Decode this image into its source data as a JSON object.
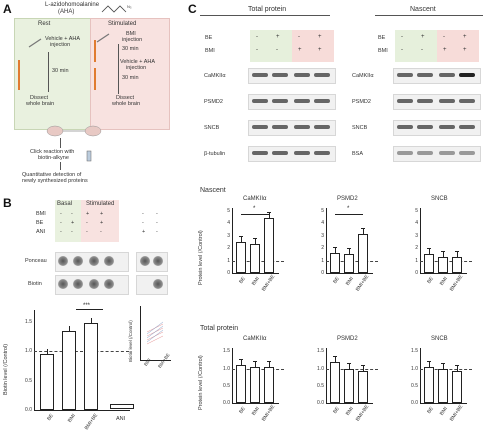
{
  "panelA": {
    "letter": "A",
    "top_label_1": "L-azidohomoalanine",
    "top_label_2": "(AHA)",
    "rest_label": "Rest",
    "stim_label": "Stimulated",
    "rest_inj": "Vehicle + AHA",
    "rest_inj2": "injection",
    "rest_time": "30 min",
    "rest_dissect": "Dissect",
    "rest_dissect2": "whole brain",
    "stim_bmi": "BMI",
    "stim_bmi2": "injection",
    "stim_time1": "30 min",
    "stim_inj": "Vehicle + AHA",
    "stim_inj2": "injection",
    "stim_time2": "30 min",
    "stim_dissect": "Dissect",
    "stim_dissect2": "whole brain",
    "step1": "Click reaction with",
    "step1b": "biotin-alkyne",
    "step2": "Quantitative detection of",
    "step2b": "newly synthesized proteins"
  },
  "panelB": {
    "letter": "B",
    "basal": "Basal",
    "stimulated": "Stimulated",
    "rows": [
      {
        "label": "BMI",
        "vals": [
          "-",
          "-",
          "+",
          "+",
          "-",
          "-"
        ]
      },
      {
        "label": "BE",
        "vals": [
          "-",
          "+",
          "-",
          "+",
          "-",
          "-"
        ]
      },
      {
        "label": "ANI",
        "vals": [
          "-",
          "-",
          "-",
          "-",
          "+",
          "-"
        ]
      }
    ],
    "ponceau": "Ponceau",
    "biotin": "Biotin",
    "ylabel": "Biotin level (/Control)",
    "yticks": [
      "0.0",
      "0.5",
      "1.0",
      "1.5"
    ],
    "xticks": [
      "BE",
      "BMI",
      "BMI+BE"
    ],
    "sig": "***",
    "ani_label": "ANI",
    "inset_ylabel": "Biotin level (/Control)",
    "inset_xticks": [
      "BMI",
      "BMI+BE"
    ]
  },
  "panelC": {
    "letter": "C",
    "total_title": "Total protein",
    "nascent_title": "Nascent",
    "be": "BE",
    "bmi": "BMI",
    "total_be": [
      "-",
      "+",
      "-",
      "+"
    ],
    "total_bmi": [
      "-",
      "-",
      "+",
      "+"
    ],
    "nascent_be": [
      "-",
      "+",
      "-",
      "+"
    ],
    "nascent_bmi": [
      "-",
      "-",
      "+",
      "+"
    ],
    "total_blots": [
      "CaMKIIα",
      "PSMD2",
      "SNCB",
      "β-tubulin"
    ],
    "nascent_blots": [
      "CaMKIIα",
      "PSMD2",
      "SNCB",
      "BSA"
    ],
    "nascent_heading": "Nascent",
    "total_heading": "Total protein",
    "ylabel": "Protein level (/Control)",
    "xticks": [
      "BE",
      "BMI",
      "BMI+BE"
    ],
    "nascent_charts": [
      {
        "title": "CaMKIIα",
        "yticks": [
          "0",
          "1",
          "2",
          "3",
          "4",
          "5"
        ],
        "values": [
          2.5,
          2.3,
          4.4
        ],
        "sig": "*"
      },
      {
        "title": "PSMD2",
        "yticks": [
          "0",
          "1",
          "2",
          "3",
          "4",
          "5"
        ],
        "values": [
          1.6,
          1.5,
          3.1
        ],
        "sig": "*"
      },
      {
        "title": "SNCB",
        "yticks": [
          "0",
          "1",
          "2",
          "3",
          "4",
          "5"
        ],
        "values": [
          1.5,
          1.3,
          1.3
        ],
        "sig": ""
      }
    ],
    "total_charts": [
      {
        "title": "CaMKIIα",
        "yticks": [
          "0.0",
          "0.5",
          "1.0",
          "1.5"
        ],
        "values": [
          1.1,
          1.05,
          1.05
        ]
      },
      {
        "title": "PSMD2",
        "yticks": [
          "0.0",
          "0.5",
          "1.0",
          "1.5"
        ],
        "values": [
          1.2,
          1.0,
          0.92
        ]
      },
      {
        "title": "SNCB",
        "yticks": [
          "0.0",
          "0.5",
          "1.0",
          "1.5"
        ],
        "values": [
          1.05,
          0.98,
          0.92
        ]
      }
    ]
  }
}
